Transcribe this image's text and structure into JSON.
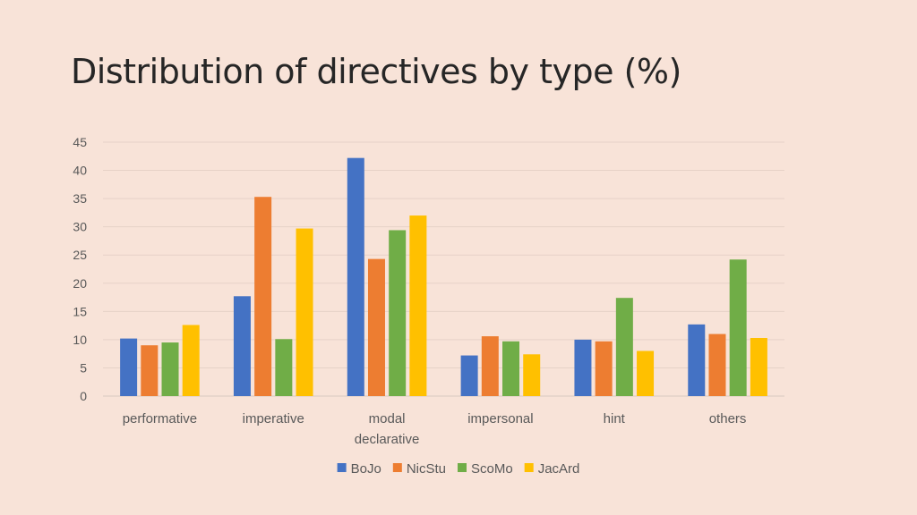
{
  "slide": {
    "title": "Distribution of directives by type (%)"
  },
  "chart_data": {
    "type": "bar",
    "title": "",
    "xlabel": "",
    "ylabel": "",
    "categories": [
      "performative",
      "imperative",
      "modal declarative",
      "impersonal",
      "hint",
      "others"
    ],
    "category_lines": [
      [
        "performative"
      ],
      [
        "imperative"
      ],
      [
        "modal",
        "declarative"
      ],
      [
        "impersonal"
      ],
      [
        "hint"
      ],
      [
        "others"
      ]
    ],
    "series": [
      {
        "name": "BoJo",
        "color": "#4472c4",
        "values": [
          10.2,
          17.7,
          42.2,
          7.2,
          10.0,
          12.7
        ]
      },
      {
        "name": "NicStu",
        "color": "#ed7d31",
        "values": [
          9.0,
          35.3,
          24.3,
          10.6,
          9.7,
          11.0
        ]
      },
      {
        "name": "ScoMo",
        "color": "#70ad47",
        "values": [
          9.5,
          10.1,
          29.4,
          9.7,
          17.4,
          24.2
        ]
      },
      {
        "name": "JacArd",
        "color": "#ffc000",
        "values": [
          12.6,
          29.7,
          32.0,
          7.4,
          8.0,
          10.3
        ]
      }
    ],
    "ylim": [
      0,
      45
    ],
    "yticks": [
      0,
      5,
      10,
      15,
      20,
      25,
      30,
      35,
      40,
      45
    ],
    "grid": true,
    "legend_position": "bottom"
  }
}
